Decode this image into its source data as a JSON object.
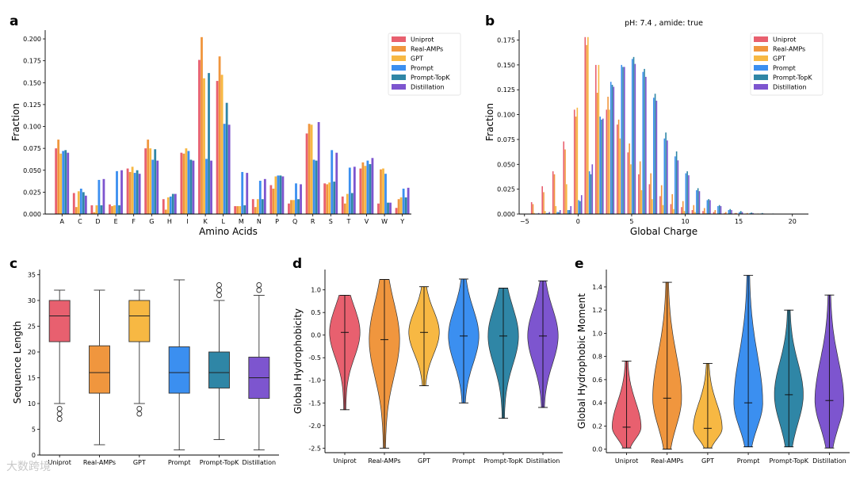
{
  "colors": {
    "Uniprot": "#e8606f",
    "Real-AMPs": "#f0963e",
    "GPT": "#f7b843",
    "Prompt": "#3b8ff0",
    "Prompt-TopK": "#2f86a6",
    "Distillation": "#7d55cf"
  },
  "watermark": "大数跨境",
  "chart_data": [
    {
      "panel": "a",
      "type": "bar",
      "xlabel": "Amino Acids",
      "ylabel": "Fraction",
      "ylim": [
        0,
        0.21
      ],
      "yticks": [
        "0.000",
        "0.025",
        "0.050",
        "0.075",
        "0.100",
        "0.125",
        "0.150",
        "0.175",
        "0.200"
      ],
      "legend": "top-right",
      "categories": [
        "A",
        "C",
        "D",
        "E",
        "F",
        "G",
        "H",
        "I",
        "K",
        "L",
        "M",
        "N",
        "P",
        "Q",
        "R",
        "S",
        "T",
        "V",
        "W",
        "Y"
      ],
      "series": [
        {
          "name": "Uniprot",
          "values": [
            0.075,
            0.024,
            0.01,
            0.011,
            0.052,
            0.075,
            0.017,
            0.07,
            0.176,
            0.152,
            0.009,
            0.017,
            0.033,
            0.012,
            0.092,
            0.035,
            0.02,
            0.052,
            0.012,
            0.007
          ]
        },
        {
          "name": "Real-AMPs",
          "values": [
            0.085,
            0.008,
            0.002,
            0.009,
            0.048,
            0.085,
            0.005,
            0.069,
            0.202,
            0.18,
            0.009,
            0.008,
            0.029,
            0.016,
            0.103,
            0.034,
            0.012,
            0.059,
            0.051,
            0.017
          ]
        },
        {
          "name": "GPT",
          "values": [
            0.069,
            0.026,
            0.01,
            0.01,
            0.054,
            0.075,
            0.019,
            0.075,
            0.155,
            0.159,
            0.009,
            0.017,
            0.043,
            0.016,
            0.102,
            0.036,
            0.023,
            0.055,
            0.052,
            0.019
          ]
        },
        {
          "name": "Prompt",
          "values": [
            0.072,
            0.029,
            0.039,
            0.049,
            0.047,
            0.062,
            0.02,
            0.072,
            0.063,
            0.103,
            0.048,
            0.038,
            0.044,
            0.035,
            0.062,
            0.073,
            0.053,
            0.061,
            0.046,
            0.029
          ]
        },
        {
          "name": "Prompt-TopK",
          "values": [
            0.073,
            0.025,
            0.01,
            0.01,
            0.05,
            0.074,
            0.023,
            0.062,
            0.161,
            0.127,
            0.01,
            0.017,
            0.044,
            0.017,
            0.061,
            0.037,
            0.024,
            0.057,
            0.013,
            0.019
          ]
        },
        {
          "name": "Distillation",
          "values": [
            0.07,
            0.021,
            0.04,
            0.05,
            0.046,
            0.061,
            0.023,
            0.061,
            0.061,
            0.102,
            0.047,
            0.04,
            0.043,
            0.034,
            0.105,
            0.07,
            0.054,
            0.064,
            0.013,
            0.03
          ]
        }
      ]
    },
    {
      "panel": "b",
      "type": "bar",
      "title": "pH: 7.4 ,  amide: true",
      "xlabel": "Global Charge",
      "ylabel": "Fraction",
      "xlim": [
        -5.5,
        21.5
      ],
      "ylim": [
        0,
        0.185
      ],
      "xticks": [
        -5,
        0,
        5,
        10,
        15,
        20
      ],
      "yticks": [
        "0.000",
        "0.025",
        "0.050",
        "0.075",
        "0.100",
        "0.125",
        "0.150",
        "0.175"
      ],
      "legend": "top-right",
      "x": [
        -4,
        -3,
        -2,
        -1,
        0,
        1,
        2,
        3,
        4,
        5,
        6,
        7,
        8,
        9,
        10,
        11,
        12,
        13,
        14,
        15,
        16,
        17,
        18,
        19,
        20
      ],
      "series": [
        {
          "name": "Uniprot",
          "values": [
            0.012,
            0.028,
            0.043,
            0.073,
            0.105,
            0.178,
            0.15,
            0.105,
            0.09,
            0.062,
            0.04,
            0.03,
            0.018,
            0.01,
            0.007,
            0.004,
            0.003,
            0.002,
            0.001,
            0.001,
            0.0005,
            0.0003,
            0.0002,
            0.0001,
            0.0001
          ]
        },
        {
          "name": "Real-AMPs",
          "values": [
            0.01,
            0.022,
            0.04,
            0.065,
            0.098,
            0.17,
            0.122,
            0.118,
            0.095,
            0.071,
            0.053,
            0.041,
            0.029,
            0.02,
            0.013,
            0.009,
            0.006,
            0.004,
            0.002,
            0.001,
            0.001,
            0.0005,
            0.0003,
            0.0002,
            0.0001
          ]
        },
        {
          "name": "GPT",
          "values": [
            0.001,
            0.003,
            0.008,
            0.03,
            0.107,
            0.178,
            0.15,
            0.105,
            0.076,
            0.05,
            0.024,
            0.015,
            0.009,
            0.005,
            0.003,
            0.002,
            0.001,
            0.0005,
            0.0003,
            0.0002,
            0.0001,
            0,
            0,
            0,
            0
          ]
        },
        {
          "name": "Prompt",
          "values": [
            0.0005,
            0.001,
            0.002,
            0.004,
            0.014,
            0.043,
            0.098,
            0.133,
            0.15,
            0.156,
            0.143,
            0.117,
            0.076,
            0.058,
            0.041,
            0.024,
            0.014,
            0.008,
            0.004,
            0.002,
            0.001,
            0.0005,
            0.0003,
            0.0002,
            0.0001
          ]
        },
        {
          "name": "Prompt-TopK",
          "values": [
            0.0005,
            0.001,
            0.002,
            0.004,
            0.013,
            0.04,
            0.095,
            0.13,
            0.148,
            0.158,
            0.146,
            0.121,
            0.082,
            0.063,
            0.043,
            0.026,
            0.015,
            0.009,
            0.005,
            0.003,
            0.0015,
            0.001,
            0.0005,
            0.0003,
            0.0002
          ]
        },
        {
          "name": "Distillation",
          "values": [
            0.001,
            0.002,
            0.004,
            0.008,
            0.019,
            0.05,
            0.096,
            0.128,
            0.148,
            0.151,
            0.138,
            0.114,
            0.074,
            0.054,
            0.039,
            0.023,
            0.014,
            0.008,
            0.004,
            0.002,
            0.001,
            0.0005,
            0.0003,
            0.0002,
            0.0001
          ]
        }
      ]
    },
    {
      "panel": "c",
      "type": "box",
      "ylabel": "Sequence Length",
      "ylim": [
        0,
        36
      ],
      "yticks": [
        "0",
        "5",
        "10",
        "15",
        "20",
        "25",
        "30",
        "35"
      ],
      "categories": [
        "Uniprot",
        "Real-AMPs",
        "GPT",
        "Prompt",
        "Prompt-TopK",
        "Distillation"
      ],
      "boxes": [
        {
          "name": "Uniprot",
          "whislo": 10,
          "q1": 22,
          "med": 27,
          "q3": 30,
          "whishi": 32,
          "fliers": [
            7,
            8,
            9
          ]
        },
        {
          "name": "Real-AMPs",
          "whislo": 2,
          "q1": 12,
          "med": 16,
          "q3": 21.2,
          "whishi": 32,
          "fliers": []
        },
        {
          "name": "GPT",
          "whislo": 10,
          "q1": 22,
          "med": 27,
          "q3": 30,
          "whishi": 32,
          "fliers": [
            8,
            9
          ]
        },
        {
          "name": "Prompt",
          "whislo": 1,
          "q1": 12,
          "med": 16,
          "q3": 21,
          "whishi": 34,
          "fliers": []
        },
        {
          "name": "Prompt-TopK",
          "whislo": 3,
          "q1": 13,
          "med": 16,
          "q3": 20,
          "whishi": 30,
          "fliers": [
            31,
            32,
            33
          ]
        },
        {
          "name": "Distillation",
          "whislo": 1,
          "q1": 11,
          "med": 15,
          "q3": 19,
          "whishi": 31,
          "fliers": [
            32,
            33
          ]
        }
      ]
    },
    {
      "panel": "d",
      "type": "violin",
      "ylabel": "Global Hydrophobicity",
      "ylim": [
        -2.6,
        1.45
      ],
      "yticks": [
        "-2.5",
        "-2.0",
        "-1.5",
        "-1.0",
        "-0.5",
        "0.0",
        "0.5",
        "1.0"
      ],
      "categories": [
        "Uniprot",
        "Real-AMPs",
        "GPT",
        "Prompt",
        "Prompt-TopK",
        "Distillation"
      ],
      "violins": [
        {
          "name": "Uniprot",
          "min": -1.65,
          "max": 0.88,
          "median": 0.06
        },
        {
          "name": "Real-AMPs",
          "min": -2.5,
          "max": 1.23,
          "median": -0.1
        },
        {
          "name": "GPT",
          "min": -1.12,
          "max": 1.07,
          "median": 0.06
        },
        {
          "name": "Prompt",
          "min": -1.5,
          "max": 1.24,
          "median": -0.02
        },
        {
          "name": "Prompt-TopK",
          "min": -1.84,
          "max": 1.04,
          "median": -0.02
        },
        {
          "name": "Distillation",
          "min": -1.6,
          "max": 1.2,
          "median": -0.02
        }
      ]
    },
    {
      "panel": "e",
      "type": "violin",
      "ylabel": "Global Hydrophobic Moment",
      "ylim": [
        -0.03,
        1.55
      ],
      "yticks": [
        "0.0",
        "0.2",
        "0.4",
        "0.6",
        "0.8",
        "1.0",
        "1.2",
        "1.4"
      ],
      "categories": [
        "Uniprot",
        "Real-AMPs",
        "GPT",
        "Prompt",
        "Prompt-TopK",
        "Distillation"
      ],
      "violins": [
        {
          "name": "Uniprot",
          "min": 0.01,
          "max": 0.76,
          "median": 0.19
        },
        {
          "name": "Real-AMPs",
          "min": 0.0,
          "max": 1.44,
          "median": 0.44
        },
        {
          "name": "GPT",
          "min": 0.01,
          "max": 0.74,
          "median": 0.18
        },
        {
          "name": "Prompt",
          "min": 0.02,
          "max": 1.5,
          "median": 0.4
        },
        {
          "name": "Prompt-TopK",
          "min": 0.02,
          "max": 1.2,
          "median": 0.47
        },
        {
          "name": "Distillation",
          "min": 0.01,
          "max": 1.33,
          "median": 0.42
        }
      ]
    }
  ]
}
